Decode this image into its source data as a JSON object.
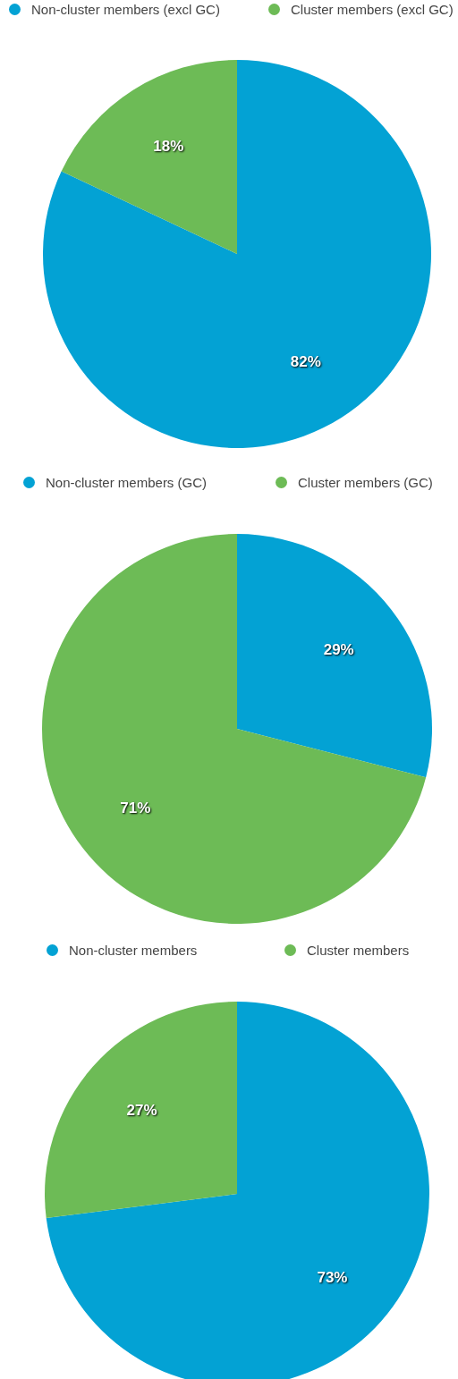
{
  "chart_data": [
    {
      "type": "pie",
      "categories": [
        "Non-cluster members (excl GC)",
        "Cluster members (excl GC)"
      ],
      "values": [
        82,
        18
      ],
      "colors": [
        "#03a2d4",
        "#6dbb56"
      ],
      "value_labels": [
        "82%",
        "18%"
      ],
      "legend": "top"
    },
    {
      "type": "pie",
      "categories": [
        "Non-cluster members (GC)",
        "Cluster members (GC)"
      ],
      "values": [
        29,
        71
      ],
      "colors": [
        "#03a2d4",
        "#6dbb56"
      ],
      "value_labels": [
        "29%",
        "71%"
      ],
      "legend": "top"
    },
    {
      "type": "pie",
      "categories": [
        "Non-cluster members",
        "Cluster members"
      ],
      "values": [
        73,
        27
      ],
      "colors": [
        "#03a2d4",
        "#6dbb56"
      ],
      "value_labels": [
        "73%",
        "27%"
      ],
      "legend": "top"
    }
  ]
}
